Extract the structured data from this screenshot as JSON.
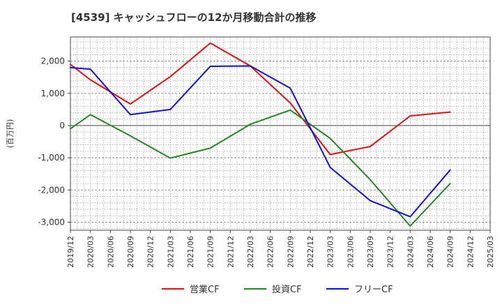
{
  "chart_data": {
    "type": "line",
    "title": "[4539]  キャッシュフローの12か月移動合計の推移",
    "ylabel": "(百万円)",
    "xlabel": "",
    "ylim": [
      -3250,
      2750
    ],
    "yticks": [
      2000,
      1000,
      0,
      -1000,
      -2000,
      -3000
    ],
    "ytick_labels": [
      "2,000",
      "1,000",
      "0",
      "-1,000",
      "-2,000",
      "-3,000"
    ],
    "x_categories": [
      "2019/12",
      "2020/03",
      "2020/06",
      "2020/09",
      "2020/12",
      "2021/03",
      "2021/06",
      "2021/09",
      "2021/12",
      "2022/03",
      "2022/06",
      "2022/09",
      "2022/12",
      "2023/03",
      "2023/06",
      "2023/09",
      "2023/12",
      "2024/03",
      "2024/06",
      "2024/09",
      "2024/12",
      "2025/03"
    ],
    "legend_position": "bottom",
    "grid": true,
    "series": [
      {
        "name": "営業CF",
        "color": "#dd1111",
        "points": [
          {
            "x": "2019/12",
            "y": 1900
          },
          {
            "x": "2020/03",
            "y": 1420
          },
          {
            "x": "2020/09",
            "y": 670
          },
          {
            "x": "2021/03",
            "y": 1520
          },
          {
            "x": "2021/09",
            "y": 2560
          },
          {
            "x": "2022/03",
            "y": 1850
          },
          {
            "x": "2022/09",
            "y": 700
          },
          {
            "x": "2023/03",
            "y": -900
          },
          {
            "x": "2023/09",
            "y": -650
          },
          {
            "x": "2024/03",
            "y": 300
          },
          {
            "x": "2024/09",
            "y": 420
          }
        ]
      },
      {
        "name": "投資CF",
        "color": "#228822",
        "points": [
          {
            "x": "2019/12",
            "y": -100
          },
          {
            "x": "2020/03",
            "y": 340
          },
          {
            "x": "2020/09",
            "y": -320
          },
          {
            "x": "2021/03",
            "y": -1010
          },
          {
            "x": "2021/09",
            "y": -700
          },
          {
            "x": "2022/03",
            "y": 40
          },
          {
            "x": "2022/09",
            "y": 480
          },
          {
            "x": "2023/03",
            "y": -400
          },
          {
            "x": "2023/09",
            "y": -1680
          },
          {
            "x": "2024/03",
            "y": -3120
          },
          {
            "x": "2024/09",
            "y": -1800
          }
        ]
      },
      {
        "name": "フリーCF",
        "color": "#1111dd",
        "points": [
          {
            "x": "2019/12",
            "y": 1800
          },
          {
            "x": "2020/03",
            "y": 1750
          },
          {
            "x": "2020/09",
            "y": 340
          },
          {
            "x": "2021/03",
            "y": 500
          },
          {
            "x": "2021/09",
            "y": 1840
          },
          {
            "x": "2022/03",
            "y": 1850
          },
          {
            "x": "2022/09",
            "y": 1160
          },
          {
            "x": "2023/03",
            "y": -1300
          },
          {
            "x": "2023/09",
            "y": -2330
          },
          {
            "x": "2024/03",
            "y": -2830
          },
          {
            "x": "2024/09",
            "y": -1380
          }
        ]
      }
    ]
  }
}
